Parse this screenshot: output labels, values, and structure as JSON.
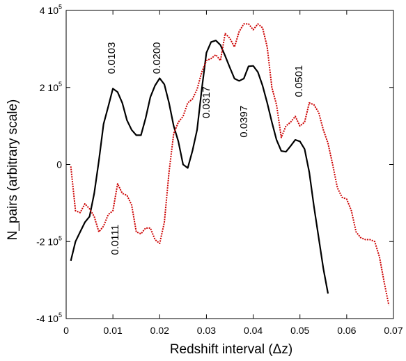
{
  "chart_data": {
    "type": "line",
    "xlabel": "Redshift interval (Δz)",
    "ylabel": "N_pairs (arbitrary scale)",
    "xlim": [
      0,
      0.07
    ],
    "ylim": [
      -400000,
      400000
    ],
    "x_ticks": [
      {
        "value": 0,
        "label": "0"
      },
      {
        "value": 0.01,
        "label": "0.01"
      },
      {
        "value": 0.02,
        "label": "0.02"
      },
      {
        "value": 0.03,
        "label": "0.03"
      },
      {
        "value": 0.04,
        "label": "0.04"
      },
      {
        "value": 0.05,
        "label": "0.05"
      },
      {
        "value": 0.06,
        "label": "0.06"
      },
      {
        "value": 0.07,
        "label": "0.07"
      }
    ],
    "y_ticks": [
      {
        "value": 400000,
        "mantissa": "4 10",
        "exp": "5"
      },
      {
        "value": 200000,
        "mantissa": "2 10",
        "exp": "5"
      },
      {
        "value": 0,
        "mantissa": "0",
        "exp": ""
      },
      {
        "value": -200000,
        "mantissa": "-2 10",
        "exp": "5"
      },
      {
        "value": -400000,
        "mantissa": "-4 10",
        "exp": "5"
      }
    ],
    "grid": false,
    "series": [
      {
        "color": "#000000",
        "style": "solid",
        "x": [
          0.001,
          0.002,
          0.003,
          0.004,
          0.005,
          0.006,
          0.007,
          0.008,
          0.009,
          0.01,
          0.011,
          0.012,
          0.013,
          0.014,
          0.015,
          0.016,
          0.017,
          0.018,
          0.019,
          0.02,
          0.021,
          0.022,
          0.023,
          0.024,
          0.025,
          0.026,
          0.027,
          0.028,
          0.029,
          0.03,
          0.031,
          0.032,
          0.033,
          0.034,
          0.035,
          0.036,
          0.037,
          0.038,
          0.039,
          0.04,
          0.041,
          0.042,
          0.043,
          0.044,
          0.045,
          0.046,
          0.047,
          0.048,
          0.049,
          0.05,
          0.051,
          0.052,
          0.053,
          0.054,
          0.055,
          0.056
        ],
        "y": [
          -250000,
          -200000,
          -175000,
          -150000,
          -135000,
          -75000,
          10000,
          105000,
          150000,
          197000,
          188000,
          160000,
          115000,
          90000,
          76000,
          76000,
          120000,
          175000,
          205000,
          224000,
          208000,
          160000,
          100000,
          60000,
          0,
          -9000,
          35000,
          90000,
          195000,
          290000,
          318000,
          322000,
          310000,
          282000,
          252000,
          223000,
          217000,
          223000,
          255000,
          256000,
          240000,
          205000,
          160000,
          110000,
          64000,
          35000,
          33000,
          48000,
          64000,
          60000,
          40000,
          -20000,
          -110000,
          -190000,
          -270000,
          -335000
        ]
      },
      {
        "color": "#cc0000",
        "style": "dotted",
        "x": [
          0.001,
          0.002,
          0.003,
          0.004,
          0.005,
          0.006,
          0.007,
          0.008,
          0.009,
          0.01,
          0.011,
          0.012,
          0.013,
          0.014,
          0.015,
          0.016,
          0.017,
          0.018,
          0.019,
          0.02,
          0.021,
          0.022,
          0.023,
          0.024,
          0.025,
          0.026,
          0.027,
          0.028,
          0.029,
          0.03,
          0.031,
          0.032,
          0.033,
          0.034,
          0.035,
          0.036,
          0.037,
          0.038,
          0.039,
          0.04,
          0.041,
          0.042,
          0.043,
          0.044,
          0.045,
          0.046,
          0.047,
          0.048,
          0.049,
          0.05,
          0.051,
          0.052,
          0.053,
          0.054,
          0.055,
          0.056,
          0.057,
          0.058,
          0.059,
          0.06,
          0.061,
          0.062,
          0.063,
          0.064,
          0.065,
          0.066,
          0.067,
          0.068,
          0.069
        ],
        "y": [
          -5000,
          -120000,
          -125000,
          -102000,
          -115000,
          -135000,
          -175000,
          -160000,
          -130000,
          -120000,
          -50000,
          -75000,
          -80000,
          -105000,
          -175000,
          -180000,
          -165000,
          -165000,
          -195000,
          -205000,
          -150000,
          -20000,
          80000,
          110000,
          125000,
          160000,
          170000,
          195000,
          240000,
          270000,
          275000,
          285000,
          270000,
          340000,
          328000,
          305000,
          345000,
          365000,
          365000,
          350000,
          365000,
          355000,
          305000,
          200000,
          155000,
          70000,
          100000,
          110000,
          125000,
          100000,
          110000,
          160000,
          155000,
          135000,
          90000,
          55000,
          0,
          -60000,
          -85000,
          -90000,
          -120000,
          -175000,
          -190000,
          -195000,
          -195000,
          -200000,
          -240000,
          -305000,
          -365000
        ]
      }
    ],
    "annotations": [
      {
        "text": "0.0103",
        "x": 0.0104,
        "y": 235000
      },
      {
        "text": "0.0200",
        "x": 0.0201,
        "y": 235000
      },
      {
        "text": "0.0317",
        "x": 0.0307,
        "y": 120000
      },
      {
        "text": "0.0397",
        "x": 0.0387,
        "y": 70000
      },
      {
        "text": "0.0501",
        "x": 0.0505,
        "y": 175000
      },
      {
        "text": "0.0111",
        "x": 0.0112,
        "y": -235000
      }
    ]
  }
}
